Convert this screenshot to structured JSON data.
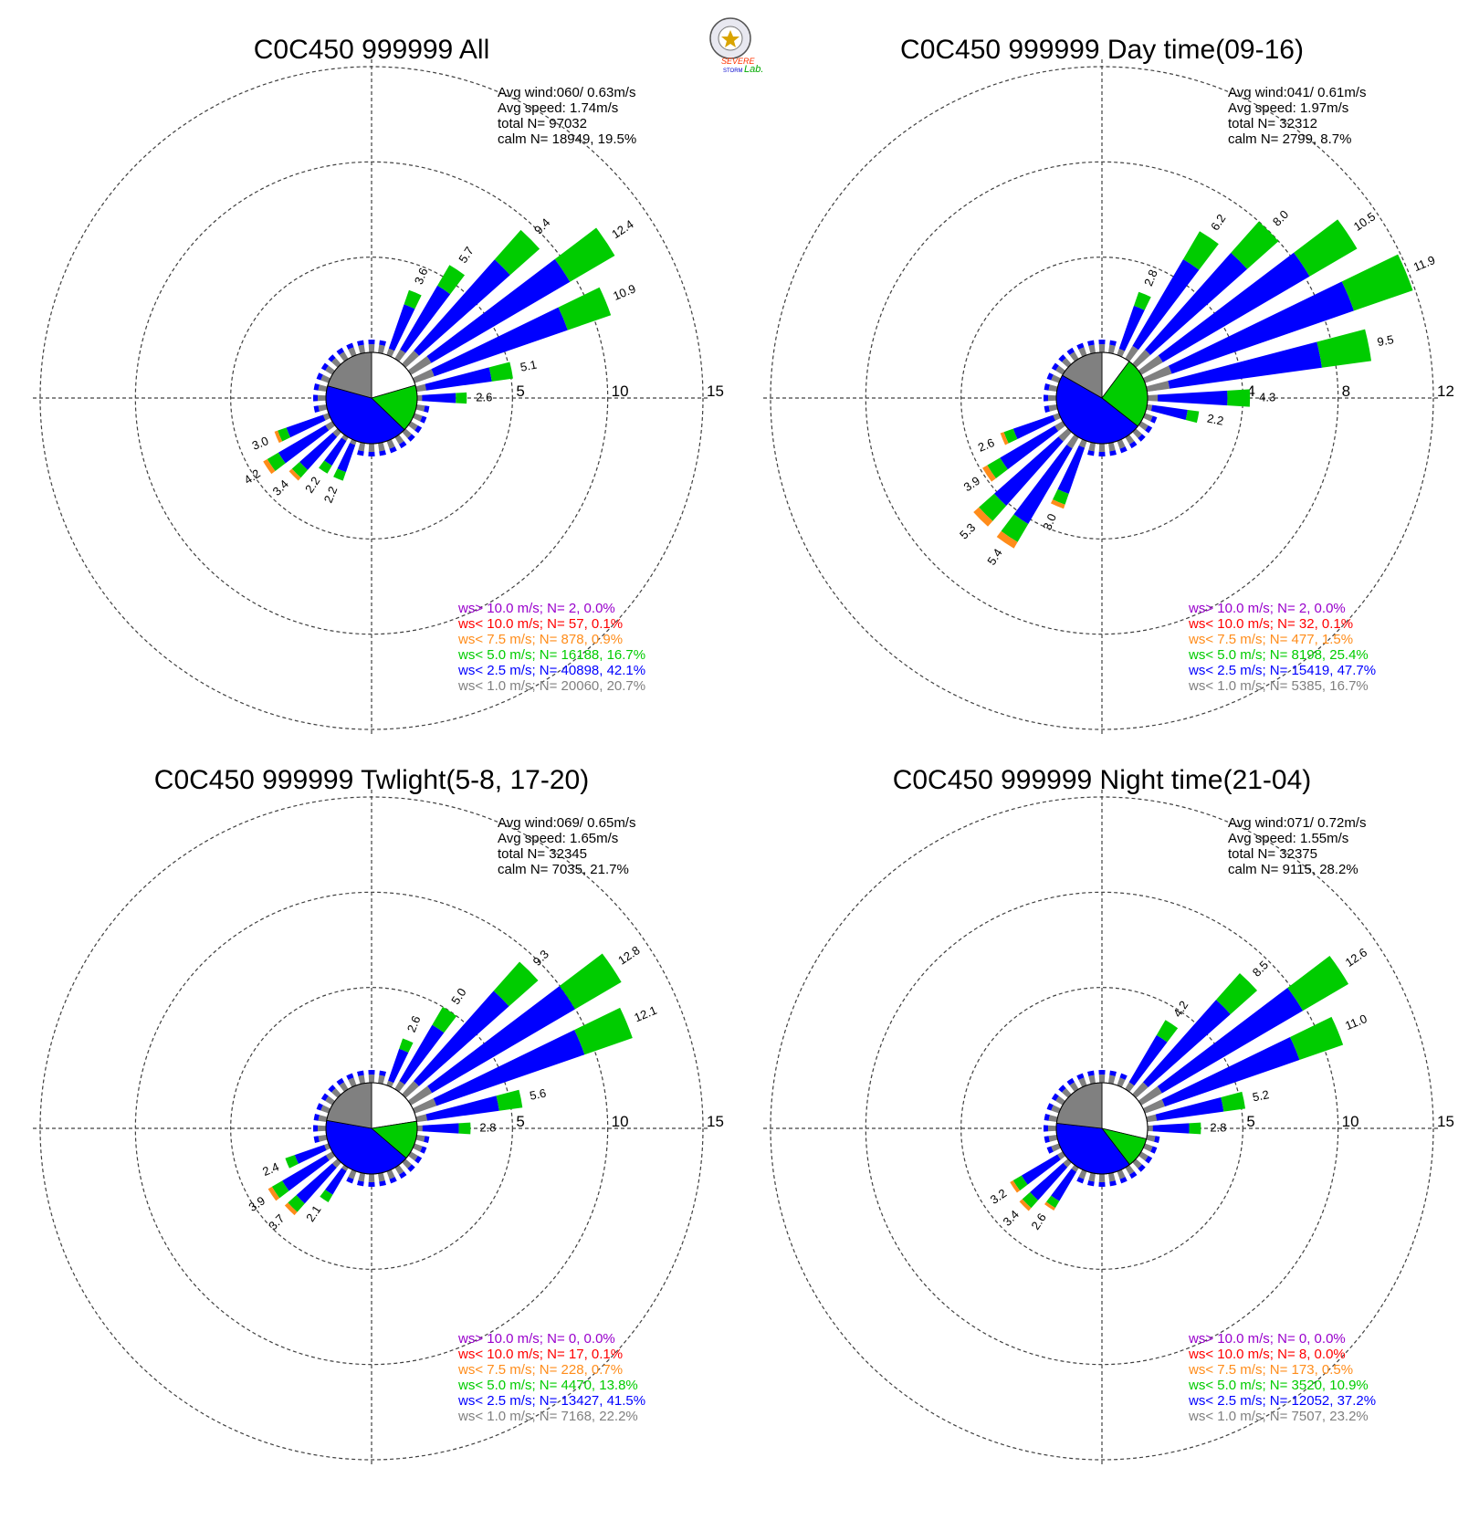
{
  "logo": {
    "text_top": "SEVERE",
    "text_mid": "STORM",
    "text_lab": "Lab."
  },
  "colors": {
    "gt10": "#9900cc",
    "lt10": "#ff0000",
    "lt7_5": "#ff8c1a",
    "lt5": "#00cc00",
    "lt2_5": "#0000ff",
    "lt1": "#808080",
    "axis": "#000000",
    "grid": "#404040"
  },
  "chart_data": [
    {
      "type": "polar-bar",
      "title": "C0C450 999999 All",
      "stats": [
        "Avg wind:060/ 0.63m/s",
        "Avg speed: 1.74m/s",
        "total N=      97032",
        "calm N=  18949,  19.5%"
      ],
      "rmax": 15,
      "ring_labels": [
        "5",
        "10",
        "15"
      ],
      "sectors": [
        {
          "dir": 22.5,
          "value": 3.6,
          "label": "3.6"
        },
        {
          "dir": 33.75,
          "value": 5.7,
          "label": "5.7"
        },
        {
          "dir": 45,
          "value": 9.4,
          "label": "9.4"
        },
        {
          "dir": 56.25,
          "value": 12.4,
          "label": "12.4"
        },
        {
          "dir": 67.5,
          "value": 10.9,
          "label": "10.9"
        },
        {
          "dir": 78.75,
          "value": 5.1,
          "label": "5.1"
        },
        {
          "dir": 90,
          "value": 2.6,
          "label": "2.6"
        },
        {
          "dir": 202.5,
          "value": 2.2,
          "label": "2.2"
        },
        {
          "dir": 213.75,
          "value": 2.2,
          "label": "2.2"
        },
        {
          "dir": 225,
          "value": 3.4,
          "label": "3.4"
        },
        {
          "dir": 236.25,
          "value": 4.2,
          "label": "4.2"
        },
        {
          "dir": 247.5,
          "value": 3.0,
          "label": "3.0"
        }
      ],
      "center_pie": {
        "lt1": 20.7,
        "lt2_5": 42.1,
        "lt5": 16.7,
        "calm": 19.5,
        "other": 1.0
      },
      "legend": [
        {
          "text": "ws> 10.0 m/s; N=     2,  0.0%",
          "color": "gt10"
        },
        {
          "text": "ws< 10.0 m/s; N=    57,  0.1%",
          "color": "lt10"
        },
        {
          "text": "ws<  7.5 m/s; N=   878,  0.9%",
          "color": "lt7_5"
        },
        {
          "text": "ws<  5.0 m/s; N= 16188, 16.7%",
          "color": "lt5"
        },
        {
          "text": "ws<  2.5 m/s; N= 40898, 42.1%",
          "color": "lt2_5"
        },
        {
          "text": "ws<  1.0 m/s; N= 20060, 20.7%",
          "color": "lt1"
        }
      ]
    },
    {
      "type": "polar-bar",
      "title": "C0C450 999999 Day time(09-16)",
      "stats": [
        "Avg wind:041/ 0.61m/s",
        "Avg speed: 1.97m/s",
        "total N=      32312",
        "calm N=   2799,   8.7%"
      ],
      "rmax": 12,
      "ring_labels": [
        "4",
        "8",
        "12"
      ],
      "sectors": [
        {
          "dir": 22.5,
          "value": 2.8,
          "label": "2.8"
        },
        {
          "dir": 33.75,
          "value": 6.2,
          "label": "6.2"
        },
        {
          "dir": 45,
          "value": 8.0,
          "label": "8.0"
        },
        {
          "dir": 56.25,
          "value": 10.5,
          "label": "10.5"
        },
        {
          "dir": 67.5,
          "value": 11.9,
          "label": "11.9"
        },
        {
          "dir": 78.75,
          "value": 9.5,
          "label": "9.5"
        },
        {
          "dir": 90,
          "value": 4.3,
          "label": "4.3"
        },
        {
          "dir": 101.25,
          "value": 2.2,
          "label": "2.2"
        },
        {
          "dir": 202.5,
          "value": 3.0,
          "label": "3.0"
        },
        {
          "dir": 213.75,
          "value": 5.4,
          "label": "5.4"
        },
        {
          "dir": 225,
          "value": 5.3,
          "label": "5.3"
        },
        {
          "dir": 236.25,
          "value": 3.9,
          "label": "3.9"
        },
        {
          "dir": 247.5,
          "value": 2.6,
          "label": "2.6"
        }
      ],
      "center_pie": {
        "lt1": 16.7,
        "lt2_5": 47.7,
        "lt5": 25.4,
        "calm": 8.7,
        "other": 1.5
      },
      "legend": [
        {
          "text": "ws> 10.0 m/s; N=     2,  0.0%",
          "color": "gt10"
        },
        {
          "text": "ws< 10.0 m/s; N=    32,  0.1%",
          "color": "lt10"
        },
        {
          "text": "ws<  7.5 m/s; N=   477,  1.5%",
          "color": "lt7_5"
        },
        {
          "text": "ws<  5.0 m/s; N=  8198, 25.4%",
          "color": "lt5"
        },
        {
          "text": "ws<  2.5 m/s; N= 15419, 47.7%",
          "color": "lt2_5"
        },
        {
          "text": "ws<  1.0 m/s; N=  5385, 16.7%",
          "color": "lt1"
        }
      ]
    },
    {
      "type": "polar-bar",
      "title": "C0C450 999999 Twlight(5-8, 17-20)",
      "stats": [
        "Avg wind:069/ 0.65m/s",
        "Avg speed: 1.65m/s",
        "total N=      32345",
        "calm N=   7035,  21.7%"
      ],
      "rmax": 15,
      "ring_labels": [
        "5",
        "10",
        "15"
      ],
      "sectors": [
        {
          "dir": 22.5,
          "value": 2.6,
          "label": "2.6"
        },
        {
          "dir": 33.75,
          "value": 5.0,
          "label": "5.0"
        },
        {
          "dir": 45,
          "value": 9.3,
          "label": "9.3"
        },
        {
          "dir": 56.25,
          "value": 12.8,
          "label": "12.8"
        },
        {
          "dir": 67.5,
          "value": 12.1,
          "label": "12.1"
        },
        {
          "dir": 78.75,
          "value": 5.6,
          "label": "5.6"
        },
        {
          "dir": 90,
          "value": 2.8,
          "label": "2.8"
        },
        {
          "dir": 213.75,
          "value": 2.1,
          "label": "2.1"
        },
        {
          "dir": 225,
          "value": 3.7,
          "label": "3.7"
        },
        {
          "dir": 236.25,
          "value": 3.9,
          "label": "3.9"
        },
        {
          "dir": 247.5,
          "value": 2.4,
          "label": "2.4"
        }
      ],
      "center_pie": {
        "lt1": 22.2,
        "lt2_5": 41.5,
        "lt5": 13.8,
        "calm": 21.7,
        "other": 0.8
      },
      "legend": [
        {
          "text": "ws> 10.0 m/s; N=     0,  0.0%",
          "color": "gt10"
        },
        {
          "text": "ws< 10.0 m/s; N=    17,  0.1%",
          "color": "lt10"
        },
        {
          "text": "ws<  7.5 m/s; N=   228,  0.7%",
          "color": "lt7_5"
        },
        {
          "text": "ws<  5.0 m/s; N=  4470, 13.8%",
          "color": "lt5"
        },
        {
          "text": "ws<  2.5 m/s; N= 13427, 41.5%",
          "color": "lt2_5"
        },
        {
          "text": "ws<  1.0 m/s; N=  7168, 22.2%",
          "color": "lt1"
        }
      ]
    },
    {
      "type": "polar-bar",
      "title": "C0C450 999999 Night time(21-04)",
      "stats": [
        "Avg wind:071/ 0.72m/s",
        "Avg speed: 1.55m/s",
        "total N=      32375",
        "calm N=   9115,  28.2%"
      ],
      "rmax": 15,
      "ring_labels": [
        "5",
        "10",
        "15"
      ],
      "sectors": [
        {
          "dir": 33.75,
          "value": 4.2,
          "label": "4.2"
        },
        {
          "dir": 45,
          "value": 8.5,
          "label": "8.5"
        },
        {
          "dir": 56.25,
          "value": 12.6,
          "label": "12.6"
        },
        {
          "dir": 67.5,
          "value": 11.0,
          "label": "11.0"
        },
        {
          "dir": 78.75,
          "value": 5.2,
          "label": "5.2"
        },
        {
          "dir": 90,
          "value": 2.8,
          "label": "2.8"
        },
        {
          "dir": 213.75,
          "value": 2.6,
          "label": "2.6"
        },
        {
          "dir": 225,
          "value": 3.4,
          "label": "3.4"
        },
        {
          "dir": 236.25,
          "value": 3.2,
          "label": "3.2"
        }
      ],
      "center_pie": {
        "lt1": 23.2,
        "lt2_5": 37.2,
        "lt5": 10.9,
        "calm": 28.2,
        "other": 0.5
      },
      "legend": [
        {
          "text": "ws> 10.0 m/s; N=     0,  0.0%",
          "color": "gt10"
        },
        {
          "text": "ws< 10.0 m/s; N=     8,  0.0%",
          "color": "lt10"
        },
        {
          "text": "ws<  7.5 m/s; N=   173,  0.5%",
          "color": "lt7_5"
        },
        {
          "text": "ws<  5.0 m/s; N=  3520, 10.9%",
          "color": "lt5"
        },
        {
          "text": "ws<  2.5 m/s; N= 12052, 37.2%",
          "color": "lt2_5"
        },
        {
          "text": "ws<  1.0 m/s; N=  7507, 23.2%",
          "color": "lt1"
        }
      ]
    }
  ]
}
